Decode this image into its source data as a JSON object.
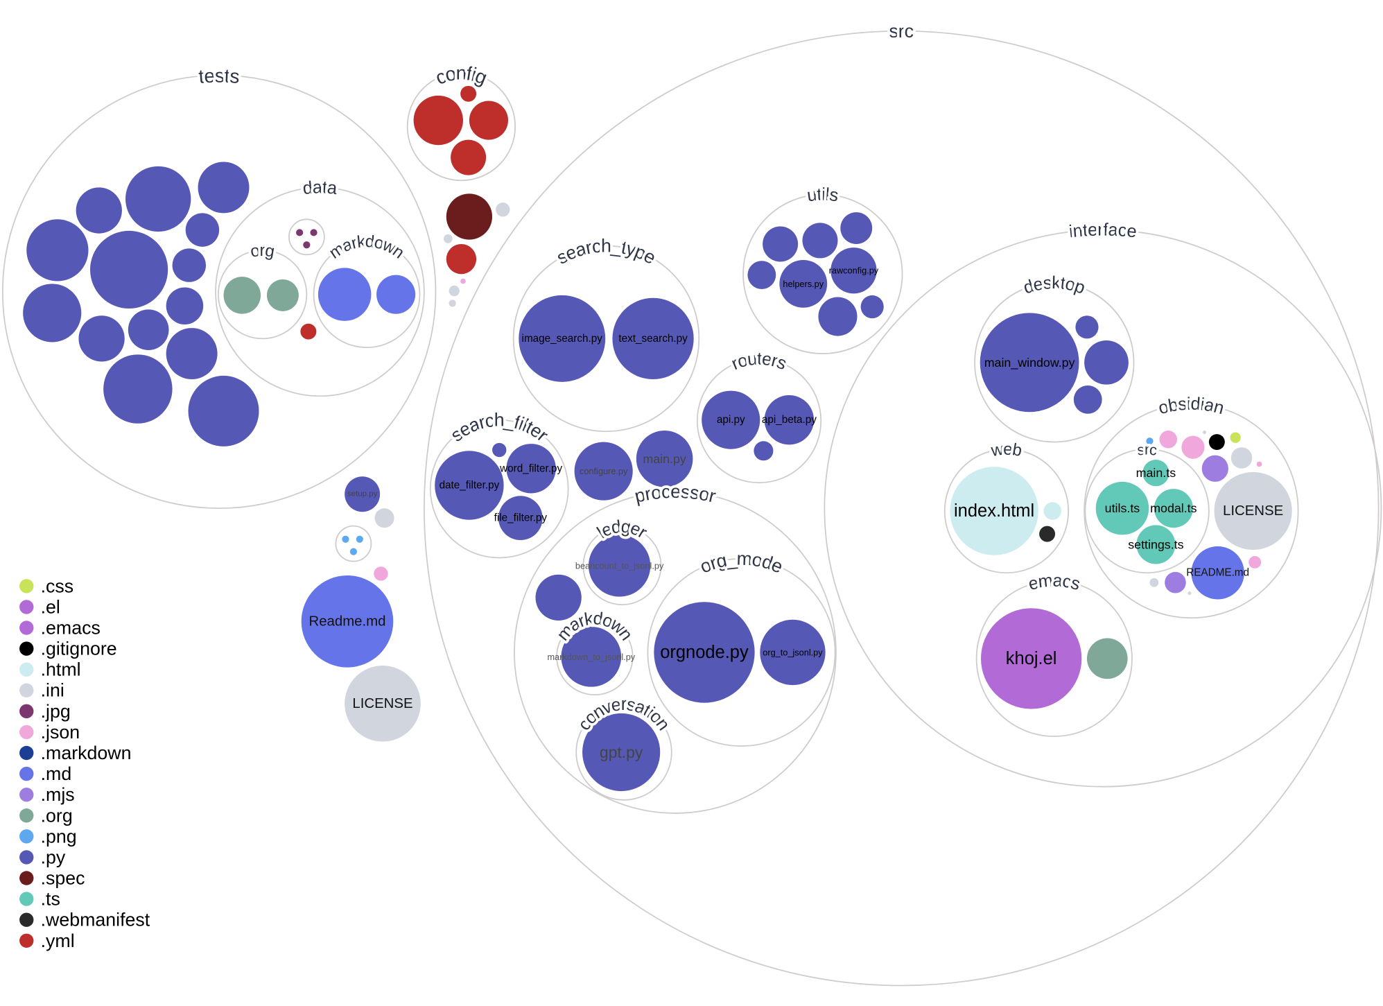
{
  "folders": [
    {
      "name": "tests"
    },
    {
      "name": "data"
    },
    {
      "name": "org"
    },
    {
      "name": "markdown"
    },
    {
      "name": ""
    },
    {
      "name": "config"
    },
    {
      "name": "src"
    },
    {
      "name": "utils"
    },
    {
      "name": "search_type"
    },
    {
      "name": "routers"
    },
    {
      "name": "search_filter"
    },
    {
      "name": "processor"
    },
    {
      "name": "ledger"
    },
    {
      "name": "markdown"
    },
    {
      "name": "org_mode"
    },
    {
      "name": "conversation"
    },
    {
      "name": "interface"
    },
    {
      "name": "desktop"
    },
    {
      "name": "web"
    },
    {
      "name": "obsidian"
    },
    {
      "name": "src"
    },
    {
      "name": "emacs"
    },
    {
      "name": ""
    }
  ],
  "files": [
    {
      "name": "",
      "ext": "py"
    },
    {
      "name": "",
      "ext": "py"
    },
    {
      "name": "",
      "ext": "py"
    },
    {
      "name": "",
      "ext": "py"
    },
    {
      "name": "",
      "ext": "py"
    },
    {
      "name": "",
      "ext": "py"
    },
    {
      "name": "",
      "ext": "py"
    },
    {
      "name": "",
      "ext": "py"
    },
    {
      "name": "",
      "ext": "py"
    },
    {
      "name": "",
      "ext": "py"
    },
    {
      "name": "",
      "ext": "py"
    },
    {
      "name": "",
      "ext": "py"
    },
    {
      "name": "",
      "ext": "py"
    },
    {
      "name": "",
      "ext": "py"
    },
    {
      "name": "",
      "ext": "jpg"
    },
    {
      "name": "",
      "ext": "jpg"
    },
    {
      "name": "",
      "ext": "jpg"
    },
    {
      "name": "",
      "ext": "org"
    },
    {
      "name": "",
      "ext": "org"
    },
    {
      "name": "",
      "ext": "md"
    },
    {
      "name": "",
      "ext": "md"
    },
    {
      "name": "",
      "ext": "yml"
    },
    {
      "name": "",
      "ext": "yml"
    },
    {
      "name": "",
      "ext": "yml"
    },
    {
      "name": "",
      "ext": "yml"
    },
    {
      "name": "",
      "ext": "yml"
    },
    {
      "name": "",
      "ext": "spec"
    },
    {
      "name": "",
      "ext": "ini"
    },
    {
      "name": "",
      "ext": "yml"
    },
    {
      "name": "",
      "ext": "ini"
    },
    {
      "name": "",
      "ext": "ini"
    },
    {
      "name": "",
      "ext": "json"
    },
    {
      "name": "",
      "ext": "ini"
    },
    {
      "name": "setup.py",
      "ext": "py"
    },
    {
      "name": "",
      "ext": "ini"
    },
    {
      "name": "",
      "ext": "png"
    },
    {
      "name": "",
      "ext": "png"
    },
    {
      "name": "",
      "ext": "png"
    },
    {
      "name": "",
      "ext": "json"
    },
    {
      "name": "Readme.md",
      "ext": "md"
    },
    {
      "name": "LICENSE",
      "ext": "ini"
    },
    {
      "name": "image_search.py",
      "ext": "py"
    },
    {
      "name": "text_search.py",
      "ext": "py"
    },
    {
      "name": "",
      "ext": "py"
    },
    {
      "name": "",
      "ext": "py"
    },
    {
      "name": "",
      "ext": "py"
    },
    {
      "name": "",
      "ext": "py"
    },
    {
      "name": "helpers.py",
      "ext": "py"
    },
    {
      "name": "rawconfig.py",
      "ext": "py"
    },
    {
      "name": "",
      "ext": "py"
    },
    {
      "name": "",
      "ext": "py"
    },
    {
      "name": "api.py",
      "ext": "py"
    },
    {
      "name": "api_beta.py",
      "ext": "py"
    },
    {
      "name": "",
      "ext": "py"
    },
    {
      "name": "date_filter.py",
      "ext": "py"
    },
    {
      "name": "word_filter.py",
      "ext": "py"
    },
    {
      "name": "file_filter.py",
      "ext": "py"
    },
    {
      "name": "",
      "ext": "py"
    },
    {
      "name": "configure.py",
      "ext": "py"
    },
    {
      "name": "main.py",
      "ext": "py"
    },
    {
      "name": "beancount_to_jsonl.py",
      "ext": "py"
    },
    {
      "name": "markdown_to_jsonl.py",
      "ext": "py"
    },
    {
      "name": "",
      "ext": "py"
    },
    {
      "name": "orgnode.py",
      "ext": "py"
    },
    {
      "name": "org_to_jsonl.py",
      "ext": "py"
    },
    {
      "name": "gpt.py",
      "ext": "py"
    },
    {
      "name": "main_window.py",
      "ext": "py"
    },
    {
      "name": "",
      "ext": "py"
    },
    {
      "name": "",
      "ext": "py"
    },
    {
      "name": "",
      "ext": "py"
    },
    {
      "name": "index.html",
      "ext": "html"
    },
    {
      "name": "",
      "ext": "html"
    },
    {
      "name": "",
      "ext": "webmanifest"
    },
    {
      "name": "main.ts",
      "ext": "ts"
    },
    {
      "name": "utils.ts",
      "ext": "ts"
    },
    {
      "name": "modal.ts",
      "ext": "ts"
    },
    {
      "name": "settings.ts",
      "ext": "ts"
    },
    {
      "name": "",
      "ext": "png"
    },
    {
      "name": "",
      "ext": "json"
    },
    {
      "name": "",
      "ext": "json"
    },
    {
      "name": "",
      "ext": "ini"
    },
    {
      "name": "",
      "ext": "gitignore"
    },
    {
      "name": "",
      "ext": "css"
    },
    {
      "name": "",
      "ext": "mjs"
    },
    {
      "name": "",
      "ext": "ini"
    },
    {
      "name": "",
      "ext": "json"
    },
    {
      "name": "LICENSE",
      "ext": "ini"
    },
    {
      "name": "README.md",
      "ext": "md"
    },
    {
      "name": "",
      "ext": "json"
    },
    {
      "name": "",
      "ext": "mjs"
    },
    {
      "name": "",
      "ext": "ini"
    },
    {
      "name": "",
      "ext": "ini"
    },
    {
      "name": "khoj.el",
      "ext": "el"
    },
    {
      "name": "",
      "ext": "org"
    }
  ],
  "colors": {
    "css": "#c8e35a",
    "el": "#b26ad6",
    "emacs": "#b26ad6",
    "gitignore": "#000000",
    "html": "#cdecef",
    "ini": "#d0d5de",
    "jpg": "#7b376e",
    "json": "#f0a8dc",
    "markdown": "#1c3f95",
    "md": "#6574e8",
    "mjs": "#9d7ee0",
    "org": "#7fa898",
    "png": "#5ea8ef",
    "py": "#5558b5",
    "spec": "#6b1d1d",
    "ts": "#62c8b8",
    "webmanifest": "#2a2a2a",
    "yml": "#be2f2b"
  },
  "legend": [
    {
      "label": ".css",
      "ext": "css"
    },
    {
      "label": ".el",
      "ext": "el"
    },
    {
      "label": ".emacs",
      "ext": "emacs"
    },
    {
      "label": ".gitignore",
      "ext": "gitignore"
    },
    {
      "label": ".html",
      "ext": "html"
    },
    {
      "label": ".ini",
      "ext": "ini"
    },
    {
      "label": ".jpg",
      "ext": "jpg"
    },
    {
      "label": ".json",
      "ext": "json"
    },
    {
      "label": ".markdown",
      "ext": "markdown"
    },
    {
      "label": ".md",
      "ext": "md"
    },
    {
      "label": ".mjs",
      "ext": "mjs"
    },
    {
      "label": ".org",
      "ext": "org"
    },
    {
      "label": ".png",
      "ext": "png"
    },
    {
      "label": ".py",
      "ext": "py"
    },
    {
      "label": ".spec",
      "ext": "spec"
    },
    {
      "label": ".ts",
      "ext": "ts"
    },
    {
      "label": ".webmanifest",
      "ext": "webmanifest"
    },
    {
      "label": ".yml",
      "ext": "yml"
    }
  ]
}
